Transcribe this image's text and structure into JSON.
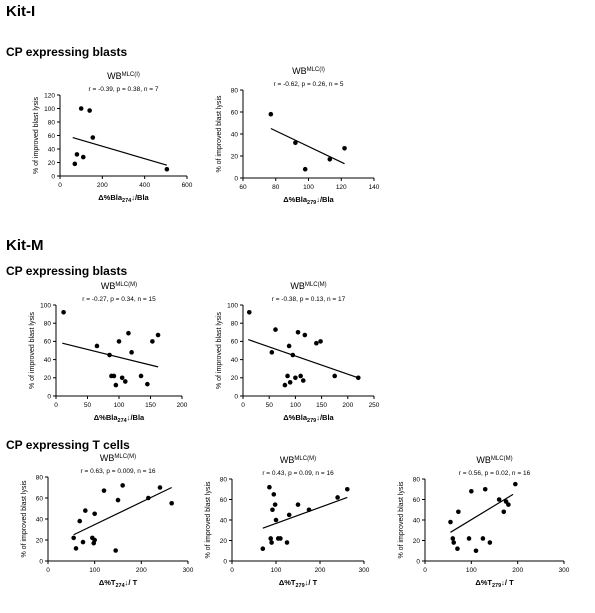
{
  "headings": {
    "kit_i": "Kit-I",
    "kit_m": "Kit-M",
    "cp_blasts_1": "CP expressing blasts",
    "cp_blasts_2": "CP expressing blasts",
    "cp_tcells": "CP expressing T cells"
  },
  "chart_data": [
    {
      "type": "scatter",
      "wb_base": "WB",
      "wb_sup": "MLC(I)",
      "stats": "r = -0.39, p = 0.38, n = 7",
      "ylabel": "% of improved blast lysis",
      "xlabel_pre": "Δ%Bla",
      "xlabel_sub": "274",
      "xlabel_post": "↓/Bla",
      "xlim": [
        0,
        600
      ],
      "ylim": [
        0,
        120
      ],
      "xticks": [
        0,
        200,
        400,
        600
      ],
      "yticks": [
        0,
        20,
        40,
        60,
        80,
        100,
        120
      ],
      "points": [
        [
          70,
          18
        ],
        [
          80,
          32
        ],
        [
          100,
          100
        ],
        [
          110,
          28
        ],
        [
          140,
          97
        ],
        [
          155,
          57
        ],
        [
          505,
          10
        ]
      ],
      "fit": [
        [
          60,
          57
        ],
        [
          505,
          16
        ]
      ]
    },
    {
      "type": "scatter",
      "wb_base": "WB",
      "wb_sup": "MLC(I)",
      "stats": "r = -0.62, p = 0.26, n = 5",
      "ylabel": "% of improved blast lysis",
      "xlabel_pre": "Δ%Bla",
      "xlabel_sub": "279",
      "xlabel_post": "↓/Bla",
      "xlim": [
        60,
        140
      ],
      "ylim": [
        0,
        80
      ],
      "xticks": [
        60,
        80,
        100,
        120,
        140
      ],
      "yticks": [
        0,
        20,
        40,
        60,
        80
      ],
      "points": [
        [
          77,
          58
        ],
        [
          92,
          32
        ],
        [
          98,
          8
        ],
        [
          113,
          17
        ],
        [
          122,
          27
        ]
      ],
      "fit": [
        [
          77,
          45
        ],
        [
          122,
          13
        ]
      ]
    },
    {
      "type": "scatter",
      "wb_base": "WB",
      "wb_sup": "MLC(M)",
      "stats": "r = -0.27, p = 0.34, n = 15",
      "ylabel": "% of improved blast lysis",
      "xlabel_pre": "Δ%Bla",
      "xlabel_sub": "274",
      "xlabel_post": "↓/Bla",
      "xlim": [
        0,
        200
      ],
      "ylim": [
        0,
        100
      ],
      "xticks": [
        0,
        50,
        100,
        150,
        200
      ],
      "yticks": [
        0,
        20,
        40,
        60,
        80,
        100
      ],
      "points": [
        [
          12,
          92
        ],
        [
          65,
          55
        ],
        [
          85,
          45
        ],
        [
          88,
          22
        ],
        [
          92,
          22
        ],
        [
          95,
          12
        ],
        [
          100,
          60
        ],
        [
          105,
          20
        ],
        [
          110,
          16
        ],
        [
          115,
          69
        ],
        [
          120,
          48
        ],
        [
          135,
          22
        ],
        [
          145,
          13
        ],
        [
          153,
          60
        ],
        [
          162,
          67
        ]
      ],
      "fit": [
        [
          10,
          58
        ],
        [
          162,
          32
        ]
      ]
    },
    {
      "type": "scatter",
      "wb_base": "WB",
      "wb_sup": "MLC(M)",
      "stats": "r = -0.38, p = 0.13, n = 17",
      "ylabel": "% of improved blast lysis",
      "xlabel_pre": "Δ%Bla",
      "xlabel_sub": "279",
      "xlabel_post": "↓/Bla",
      "xlim": [
        0,
        250
      ],
      "ylim": [
        0,
        100
      ],
      "xticks": [
        0,
        50,
        100,
        150,
        200,
        250
      ],
      "yticks": [
        0,
        20,
        40,
        60,
        80,
        100
      ],
      "points": [
        [
          12,
          92
        ],
        [
          55,
          48
        ],
        [
          62,
          73
        ],
        [
          80,
          12
        ],
        [
          85,
          22
        ],
        [
          88,
          55
        ],
        [
          90,
          15
        ],
        [
          95,
          45
        ],
        [
          100,
          20
        ],
        [
          105,
          70
        ],
        [
          110,
          22
        ],
        [
          115,
          17
        ],
        [
          118,
          67
        ],
        [
          140,
          58
        ],
        [
          148,
          60
        ],
        [
          175,
          22
        ],
        [
          220,
          20
        ]
      ],
      "fit": [
        [
          10,
          62
        ],
        [
          220,
          20
        ]
      ]
    },
    {
      "type": "scatter",
      "wb_base": "WB",
      "wb_sup": "MLC(M)",
      "stats": "r = 0.63, p = 0.009, n = 16",
      "ylabel": "% of improved blast lysis",
      "xlabel_pre": "Δ%T",
      "xlabel_sub": "274",
      "xlabel_post": "↓/ T",
      "xlim": [
        0,
        300
      ],
      "ylim": [
        0,
        80
      ],
      "xticks": [
        0,
        100,
        200,
        300
      ],
      "yticks": [
        0,
        20,
        40,
        60,
        80
      ],
      "points": [
        [
          55,
          22
        ],
        [
          60,
          12
        ],
        [
          68,
          38
        ],
        [
          75,
          18
        ],
        [
          80,
          48
        ],
        [
          95,
          22
        ],
        [
          98,
          17
        ],
        [
          100,
          45
        ],
        [
          120,
          67
        ],
        [
          145,
          10
        ],
        [
          150,
          58
        ],
        [
          160,
          72
        ],
        [
          215,
          60
        ],
        [
          240,
          70
        ],
        [
          265,
          55
        ],
        [
          100,
          20
        ]
      ],
      "fit": [
        [
          55,
          25
        ],
        [
          265,
          70
        ]
      ]
    },
    {
      "type": "scatter",
      "wb_base": "WB",
      "wb_sup": "MLC(M)",
      "stats": "r = 0.43, p = 0.09, n = 16",
      "ylabel": "% of improved blast lysis",
      "xlabel_pre": "Δ%T",
      "xlabel_sub": "279",
      "xlabel_post": "↓/ T",
      "xlim": [
        0,
        300
      ],
      "ylim": [
        0,
        80
      ],
      "xticks": [
        0,
        100,
        200,
        300
      ],
      "yticks": [
        0,
        20,
        40,
        60,
        80
      ],
      "points": [
        [
          70,
          12
        ],
        [
          85,
          72
        ],
        [
          88,
          22
        ],
        [
          90,
          18
        ],
        [
          92,
          50
        ],
        [
          95,
          65
        ],
        [
          98,
          55
        ],
        [
          100,
          40
        ],
        [
          105,
          22
        ],
        [
          110,
          22
        ],
        [
          125,
          18
        ],
        [
          130,
          45
        ],
        [
          150,
          55
        ],
        [
          175,
          50
        ],
        [
          240,
          62
        ],
        [
          262,
          70
        ]
      ],
      "fit": [
        [
          70,
          32
        ],
        [
          262,
          62
        ]
      ]
    },
    {
      "type": "scatter",
      "wb_base": "WB",
      "wb_sup": "MLC(M)",
      "stats": "r = 0.56, p = 0.02, n = 16",
      "ylabel": "% of improved blast lysis",
      "xlabel_pre": "Δ%T",
      "xlabel_sub": "279",
      "xlabel_post": "↓/ T",
      "xlim": [
        0,
        300
      ],
      "ylim": [
        0,
        80
      ],
      "xticks": [
        0,
        100,
        200,
        300
      ],
      "yticks": [
        0,
        20,
        40,
        60,
        80
      ],
      "points": [
        [
          55,
          38
        ],
        [
          60,
          22
        ],
        [
          62,
          18
        ],
        [
          70,
          12
        ],
        [
          72,
          48
        ],
        [
          95,
          22
        ],
        [
          100,
          68
        ],
        [
          110,
          10
        ],
        [
          125,
          22
        ],
        [
          130,
          70
        ],
        [
          140,
          18
        ],
        [
          160,
          60
        ],
        [
          170,
          48
        ],
        [
          175,
          58
        ],
        [
          180,
          55
        ],
        [
          195,
          75
        ]
      ],
      "fit": [
        [
          55,
          28
        ],
        [
          190,
          65
        ]
      ]
    }
  ]
}
